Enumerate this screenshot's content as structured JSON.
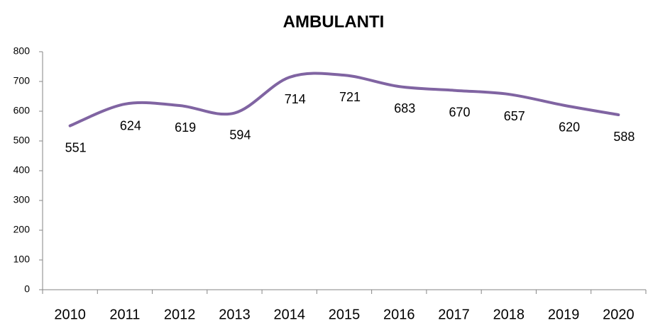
{
  "chart_data": {
    "type": "line",
    "title": "AMBULANTI",
    "categories": [
      "2010",
      "2011",
      "2012",
      "2013",
      "2014",
      "2015",
      "2016",
      "2017",
      "2018",
      "2019",
      "2020"
    ],
    "values": [
      551,
      624,
      619,
      594,
      714,
      721,
      683,
      670,
      657,
      620,
      588
    ],
    "color": "#8064a2",
    "smooth": true,
    "ylim": [
      0,
      800
    ],
    "yticks": [
      0,
      100,
      200,
      300,
      400,
      500,
      600,
      700,
      800
    ],
    "grid": false
  }
}
